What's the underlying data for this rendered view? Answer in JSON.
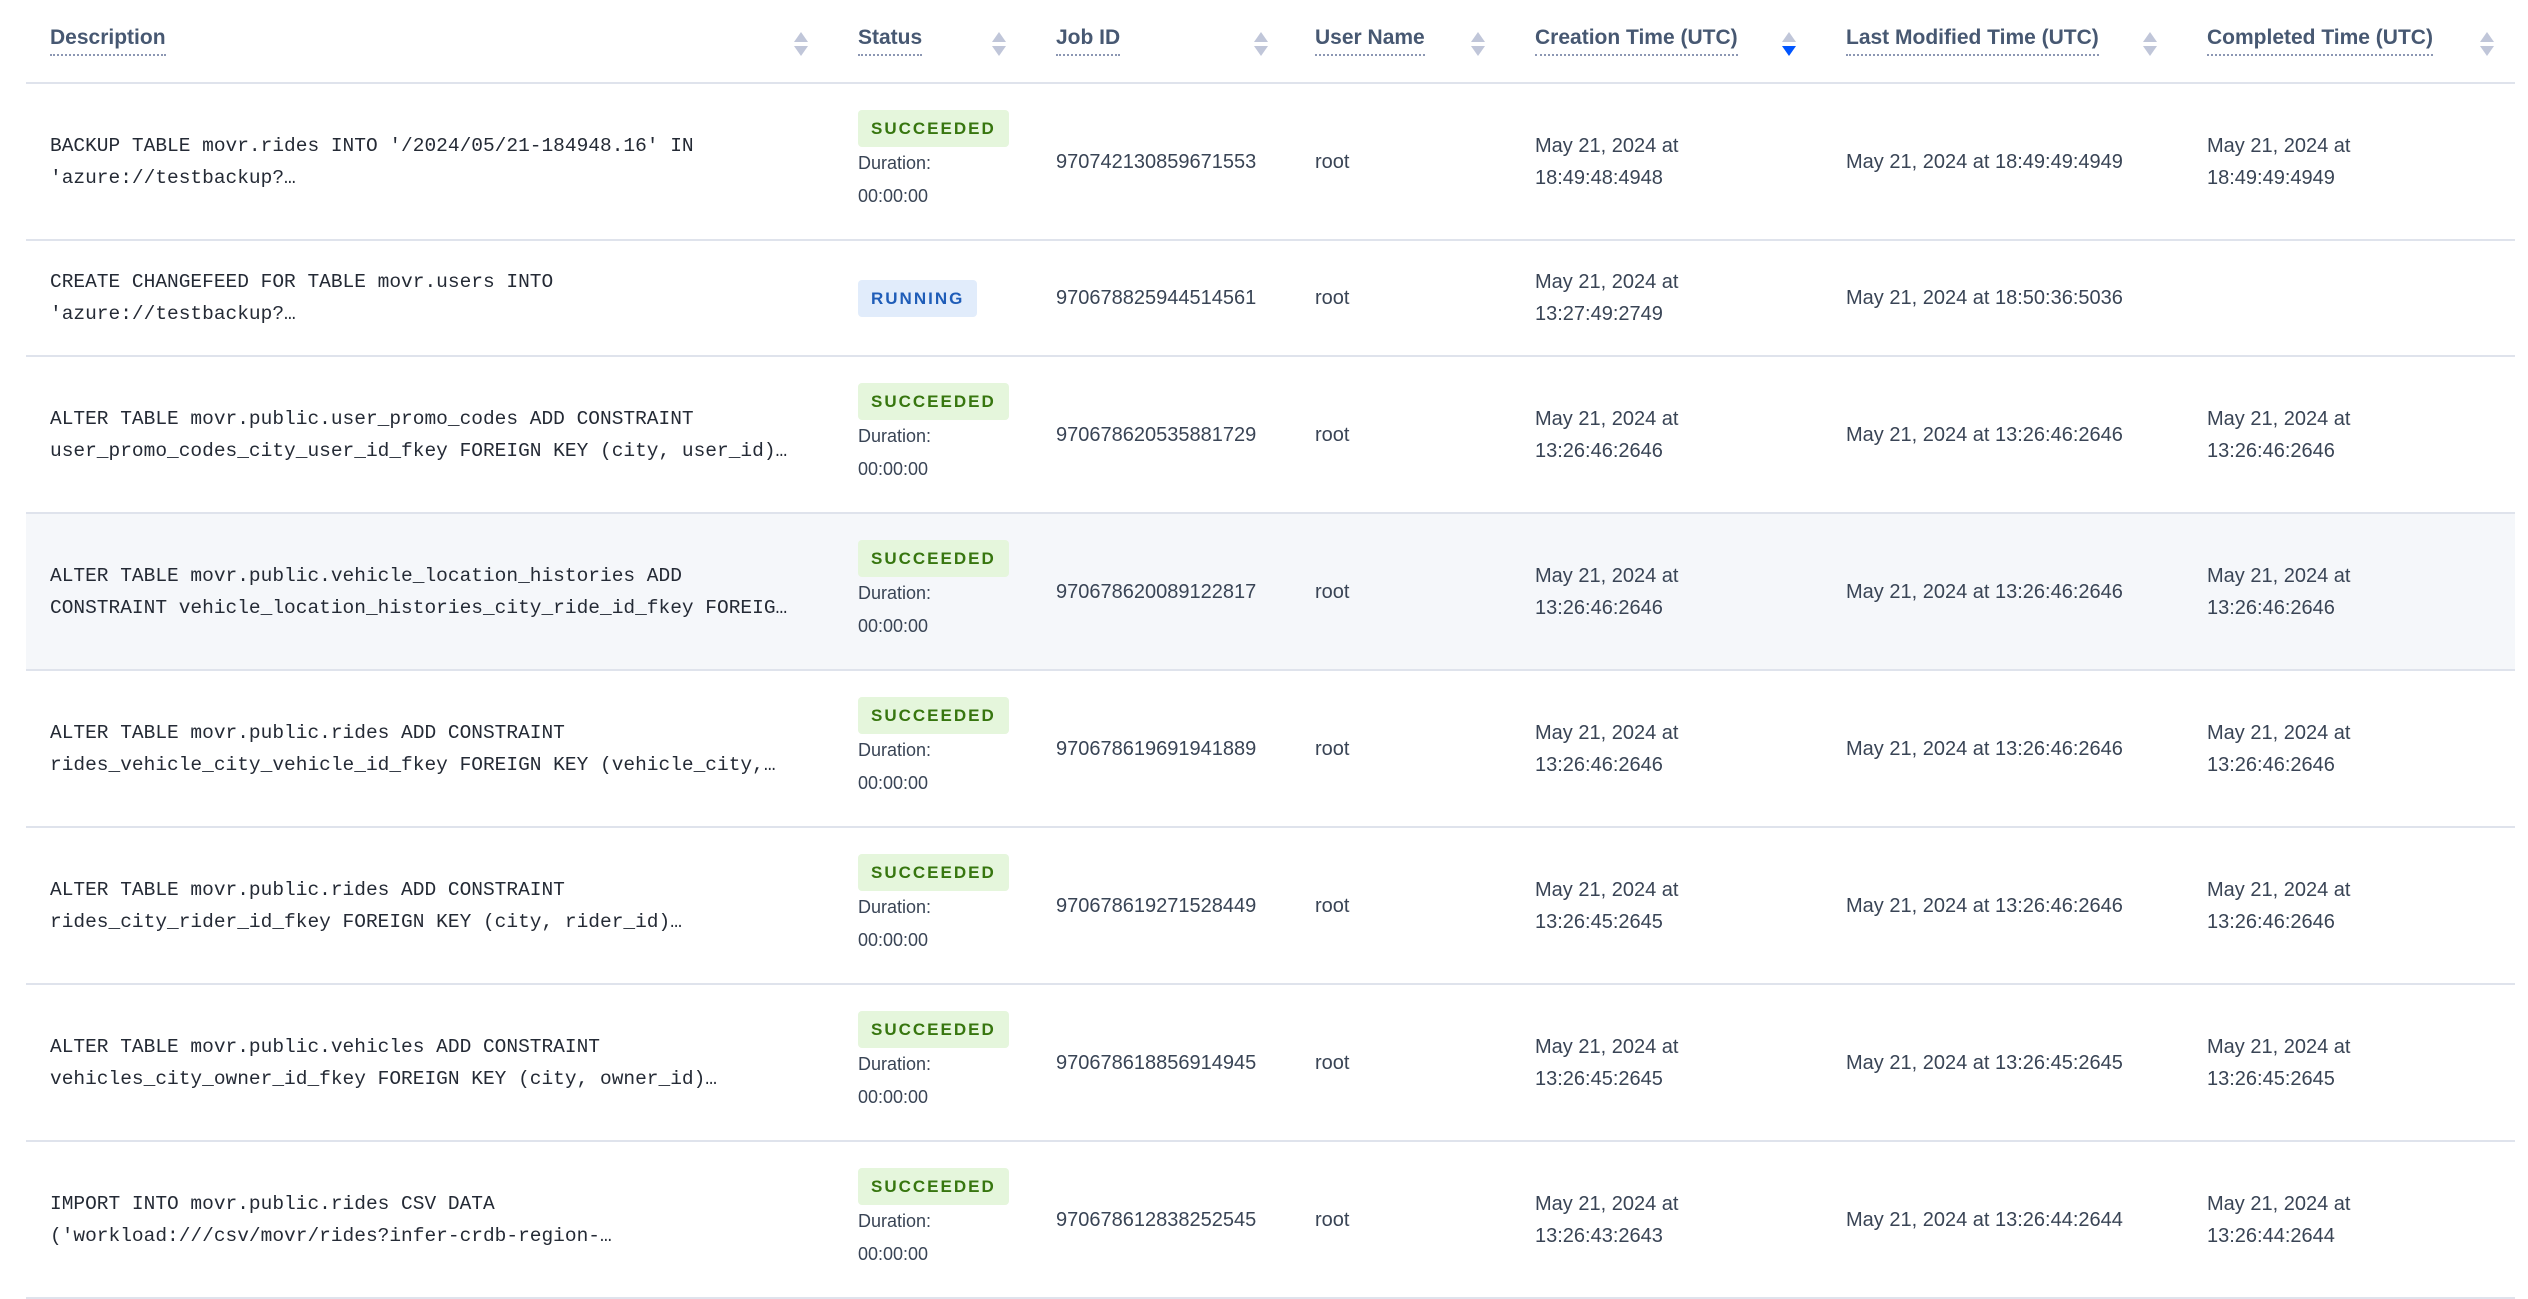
{
  "columns": [
    {
      "label": "Description",
      "sort": "none"
    },
    {
      "label": "Status",
      "sort": "none"
    },
    {
      "label": "Job ID",
      "sort": "none"
    },
    {
      "label": "User Name",
      "sort": "none"
    },
    {
      "label": "Creation Time (UTC)",
      "sort": "descending"
    },
    {
      "label": "Last Modified Time (UTC)",
      "sort": "none"
    },
    {
      "label": "Completed Time (UTC)",
      "sort": "none"
    }
  ],
  "colors": {
    "succeeded_bg": "#e5f6dc",
    "succeeded_text": "#37760f",
    "running_bg": "#e1ecfb",
    "running_text": "#1f5db8",
    "active_sort": "#0055ff",
    "highlight_row": "#f5f7fa"
  },
  "duration_label": "Duration:",
  "rows": [
    {
      "desc": [
        "BACKUP TABLE movr.rides INTO '/2024/05/21-184948.16' IN",
        "'azure://testbackup?…"
      ],
      "status": "SUCCEEDED",
      "duration": "00:00:00",
      "job_id": "970742130859671553",
      "user": "root",
      "created": "May 21, 2024 at 18:49:48:4948",
      "modified": "May 21, 2024 at 18:49:49:4949",
      "completed": "May 21, 2024 at 18:49:49:4949"
    },
    {
      "desc": [
        "CREATE CHANGEFEED FOR TABLE movr.users INTO",
        "'azure://testbackup?…"
      ],
      "status": "RUNNING",
      "duration": "",
      "job_id": "970678825944514561",
      "user": "root",
      "created": "May 21, 2024 at 13:27:49:2749",
      "modified": "May 21, 2024 at 18:50:36:5036",
      "completed": ""
    },
    {
      "desc": [
        "ALTER TABLE movr.public.user_promo_codes ADD CONSTRAINT",
        "user_promo_codes_city_user_id_fkey FOREIGN KEY (city, user_id)…"
      ],
      "status": "SUCCEEDED",
      "duration": "00:00:00",
      "job_id": "970678620535881729",
      "user": "root",
      "created": "May 21, 2024 at 13:26:46:2646",
      "modified": "May 21, 2024 at 13:26:46:2646",
      "completed": "May 21, 2024 at 13:26:46:2646"
    },
    {
      "desc": [
        "ALTER TABLE movr.public.vehicle_location_histories ADD",
        "CONSTRAINT vehicle_location_histories_city_ride_id_fkey FOREIG…"
      ],
      "status": "SUCCEEDED",
      "duration": "00:00:00",
      "job_id": "970678620089122817",
      "user": "root",
      "created": "May 21, 2024 at 13:26:46:2646",
      "modified": "May 21, 2024 at 13:26:46:2646",
      "completed": "May 21, 2024 at 13:26:46:2646"
    },
    {
      "desc": [
        "ALTER TABLE movr.public.rides ADD CONSTRAINT",
        "rides_vehicle_city_vehicle_id_fkey FOREIGN KEY (vehicle_city,…"
      ],
      "status": "SUCCEEDED",
      "duration": "00:00:00",
      "job_id": "970678619691941889",
      "user": "root",
      "created": "May 21, 2024 at 13:26:46:2646",
      "modified": "May 21, 2024 at 13:26:46:2646",
      "completed": "May 21, 2024 at 13:26:46:2646"
    },
    {
      "desc": [
        "ALTER TABLE movr.public.rides ADD CONSTRAINT",
        "rides_city_rider_id_fkey FOREIGN KEY (city, rider_id)…"
      ],
      "status": "SUCCEEDED",
      "duration": "00:00:00",
      "job_id": "970678619271528449",
      "user": "root",
      "created": "May 21, 2024 at 13:26:45:2645",
      "modified": "May 21, 2024 at 13:26:46:2646",
      "completed": "May 21, 2024 at 13:26:46:2646"
    },
    {
      "desc": [
        "ALTER TABLE movr.public.vehicles ADD CONSTRAINT",
        "vehicles_city_owner_id_fkey FOREIGN KEY (city, owner_id)…"
      ],
      "status": "SUCCEEDED",
      "duration": "00:00:00",
      "job_id": "970678618856914945",
      "user": "root",
      "created": "May 21, 2024 at 13:26:45:2645",
      "modified": "May 21, 2024 at 13:26:45:2645",
      "completed": "May 21, 2024 at 13:26:45:2645"
    },
    {
      "desc": [
        "IMPORT INTO movr.public.rides CSV DATA",
        "('workload:///csv/movr/rides?infer-crdb-region-…"
      ],
      "status": "SUCCEEDED",
      "duration": "00:00:00",
      "job_id": "970678612838252545",
      "user": "root",
      "created": "May 21, 2024 at 13:26:43:2643",
      "modified": "May 21, 2024 at 13:26:44:2644",
      "completed": "May 21, 2024 at 13:26:44:2644"
    }
  ]
}
